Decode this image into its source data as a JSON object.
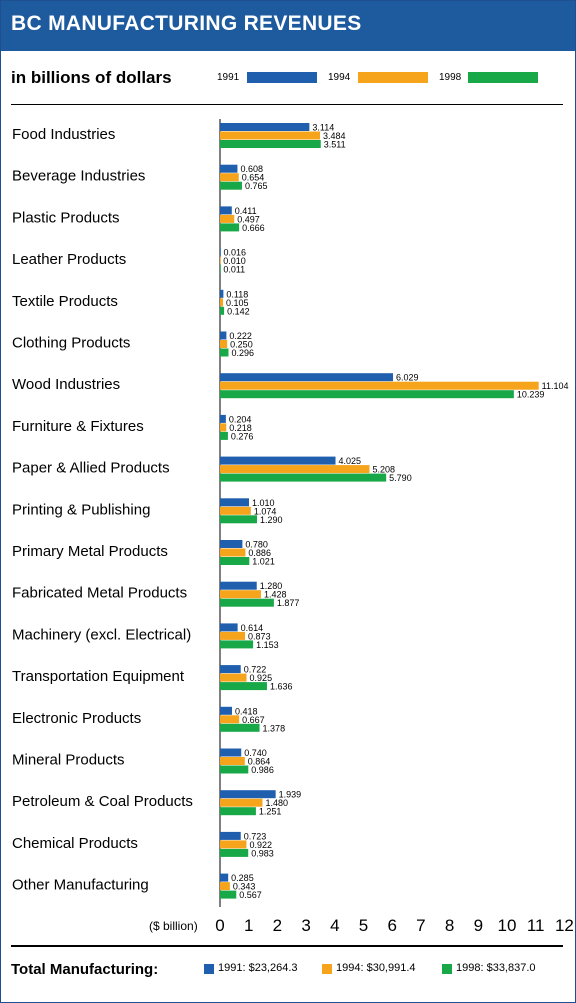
{
  "header": {
    "title": "BC MANUFACTURING REVENUES",
    "subtitle": "in billions of dollars"
  },
  "legend": [
    "1991",
    "1994",
    "1998"
  ],
  "colors": {
    "1991": "#1f5fae",
    "1994": "#f5a41c",
    "1998": "#19a848",
    "title_bar": "#1d5a9e"
  },
  "totals": {
    "label": "Total Manufacturing:",
    "items": [
      "1991: $23,264.3",
      "1994: $30,991.4",
      "1998: $33,837.0"
    ]
  },
  "chart_data": {
    "type": "bar",
    "orientation": "horizontal",
    "title": "BC MANUFACTURING REVENUES",
    "subtitle": "in billions of dollars",
    "xlabel": "($ billion)",
    "xlim": [
      0,
      12
    ],
    "xticks": [
      "0",
      "1",
      "2",
      "3",
      "4",
      "5",
      "6",
      "7",
      "8",
      "9",
      "10",
      "11",
      "12"
    ],
    "legend_placement": "top",
    "categories": [
      "Food Industries",
      "Beverage Industries",
      "Plastic Products",
      "Leather Products",
      "Textile Products",
      "Clothing Products",
      "Wood Industries",
      "Furniture & Fixtures",
      "Paper & Allied Products",
      "Printing & Publishing",
      "Primary Metal Products",
      "Fabricated Metal Products",
      "Machinery (excl. Electrical)",
      "Transportation Equipment",
      "Electronic Products",
      "Mineral Products",
      "Petroleum & Coal Products",
      "Chemical Products",
      "Other Manufacturing"
    ],
    "series": [
      {
        "name": "1991",
        "values": [
          3.114,
          0.608,
          0.411,
          0.016,
          0.118,
          0.222,
          6.029,
          0.204,
          4.025,
          1.01,
          0.78,
          1.28,
          0.614,
          0.722,
          0.418,
          0.74,
          1.939,
          0.723,
          0.285
        ],
        "labels": [
          "3.114",
          "0.608",
          "0.411",
          "0.016",
          "0.118",
          "0.222",
          "6.029",
          "0.204",
          "4.025",
          "1.010",
          "0.780",
          "1.280",
          "0.614",
          "0.722",
          "0.418",
          "0.740",
          "1.939",
          "0.723",
          "0.285"
        ]
      },
      {
        "name": "1994",
        "values": [
          3.484,
          0.654,
          0.497,
          0.01,
          0.105,
          0.25,
          11.104,
          0.218,
          5.208,
          1.074,
          0.886,
          1.428,
          0.873,
          0.925,
          0.667,
          0.864,
          1.48,
          0.922,
          0.343
        ],
        "labels": [
          "3.484",
          "0.654",
          "0.497",
          "0.010",
          "0.105",
          "0.250",
          "11.104",
          "0.218",
          "5.208",
          "1.074",
          "0.886",
          "1.428",
          "0.873",
          "0.925",
          "0.667",
          "0.864",
          "1.480",
          "0.922",
          "0.343"
        ]
      },
      {
        "name": "1998",
        "values": [
          3.511,
          0.765,
          0.666,
          0.011,
          0.142,
          0.296,
          10.239,
          0.276,
          5.79,
          1.29,
          1.021,
          1.877,
          1.153,
          1.636,
          1.378,
          0.986,
          1.251,
          0.983,
          0.567
        ],
        "labels": [
          "3.511",
          "0.765",
          "0.666",
          "0.011",
          "0.142",
          "0.296",
          "10.239",
          "0.276",
          "5.790",
          "1.290",
          "1.021",
          "1.877",
          "1.153",
          "1.636",
          "1.378",
          "0.986",
          "1.251",
          "0.983",
          "0.567"
        ]
      }
    ]
  }
}
